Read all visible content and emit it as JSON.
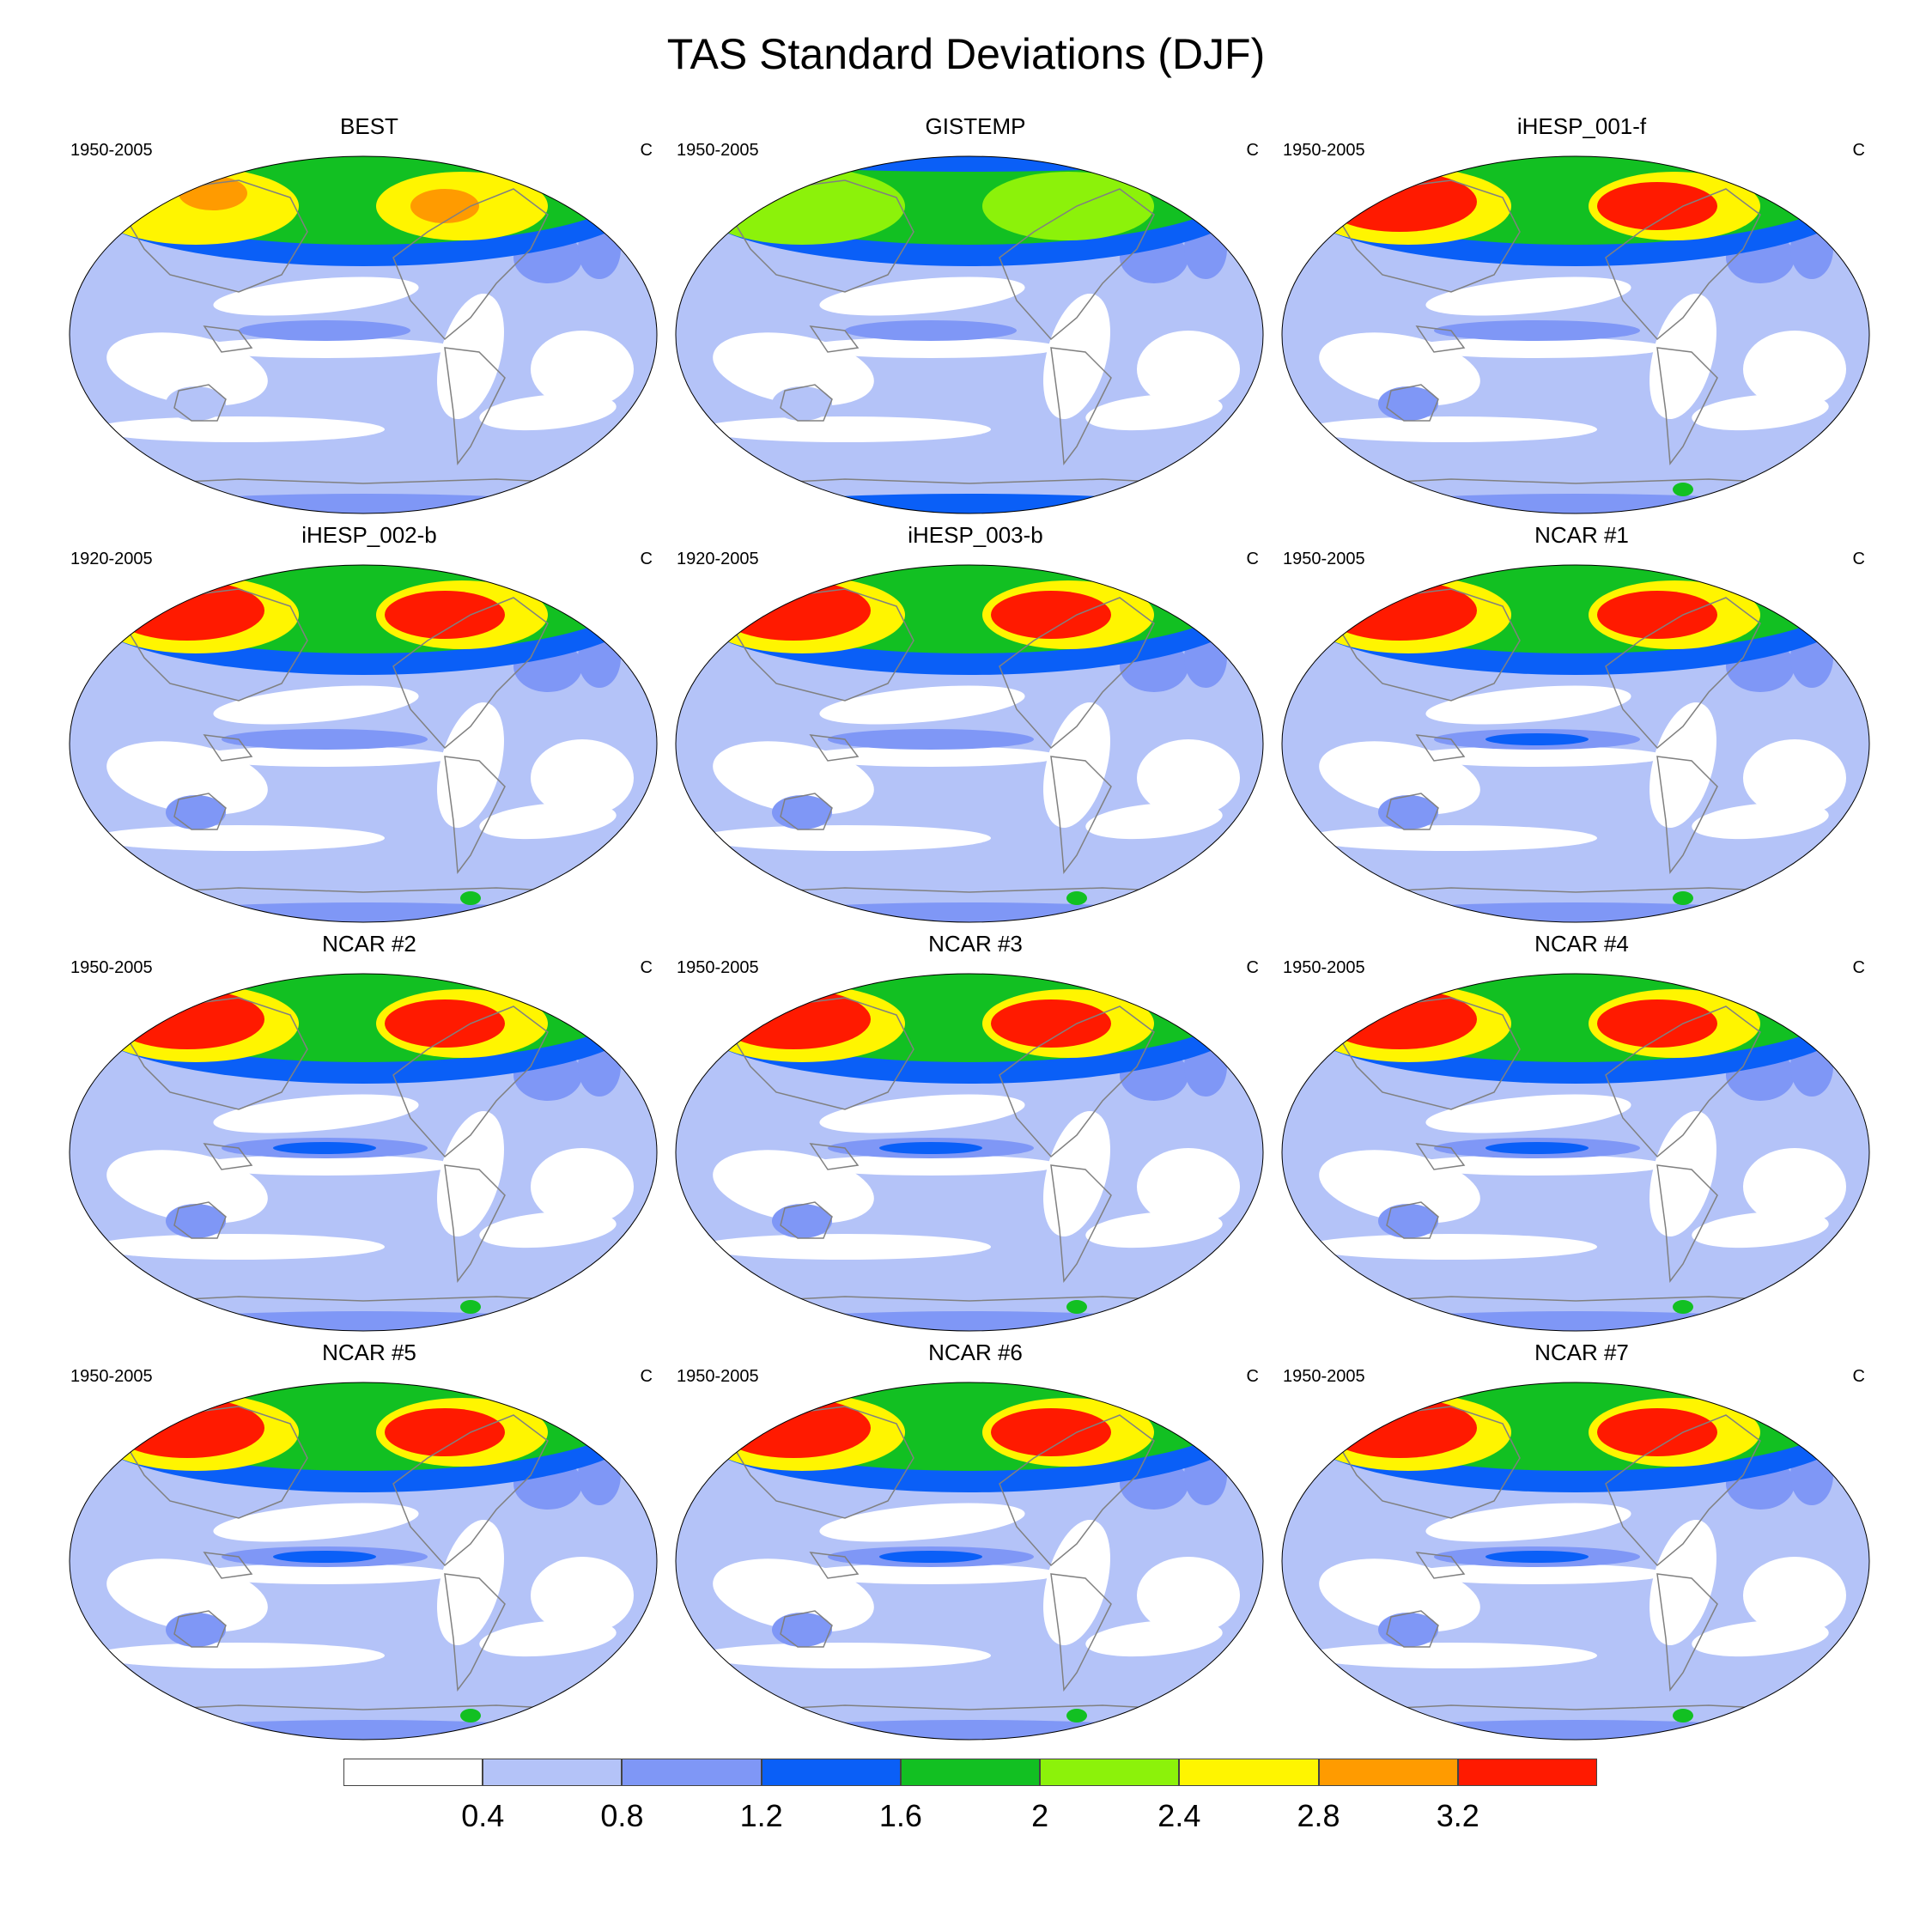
{
  "title": "TAS Standard Deviations (DJF)",
  "panels": [
    {
      "title": "BEST",
      "period": "1950-2005",
      "units": "C"
    },
    {
      "title": "GISTEMP",
      "period": "1950-2005",
      "units": "C"
    },
    {
      "title": "iHESP_001-f",
      "period": "1950-2005",
      "units": "C"
    },
    {
      "title": "iHESP_002-b",
      "period": "1920-2005",
      "units": "C"
    },
    {
      "title": "iHESP_003-b",
      "period": "1920-2005",
      "units": "C"
    },
    {
      "title": "NCAR #1",
      "period": "1950-2005",
      "units": "C"
    },
    {
      "title": "NCAR #2",
      "period": "1950-2005",
      "units": "C"
    },
    {
      "title": "NCAR #3",
      "period": "1950-2005",
      "units": "C"
    },
    {
      "title": "NCAR #4",
      "period": "1950-2005",
      "units": "C"
    },
    {
      "title": "NCAR #5",
      "period": "1950-2005",
      "units": "C"
    },
    {
      "title": "NCAR #6",
      "period": "1950-2005",
      "units": "C"
    },
    {
      "title": "NCAR #7",
      "period": "1950-2005",
      "units": "C"
    }
  ],
  "colorbar": {
    "labels": [
      "0.4",
      "0.8",
      "1.2",
      "1.6",
      "2",
      "2.4",
      "2.8",
      "3.2"
    ],
    "colors": [
      "#ffffff",
      "#b4c3f8",
      "#7f97f6",
      "#0a5ff7",
      "#12c022",
      "#8cf20a",
      "#fff500",
      "#ff9b00",
      "#ff1a00"
    ]
  },
  "palette": {
    "land_outline": "#808080",
    "map_border": "#000000"
  }
}
